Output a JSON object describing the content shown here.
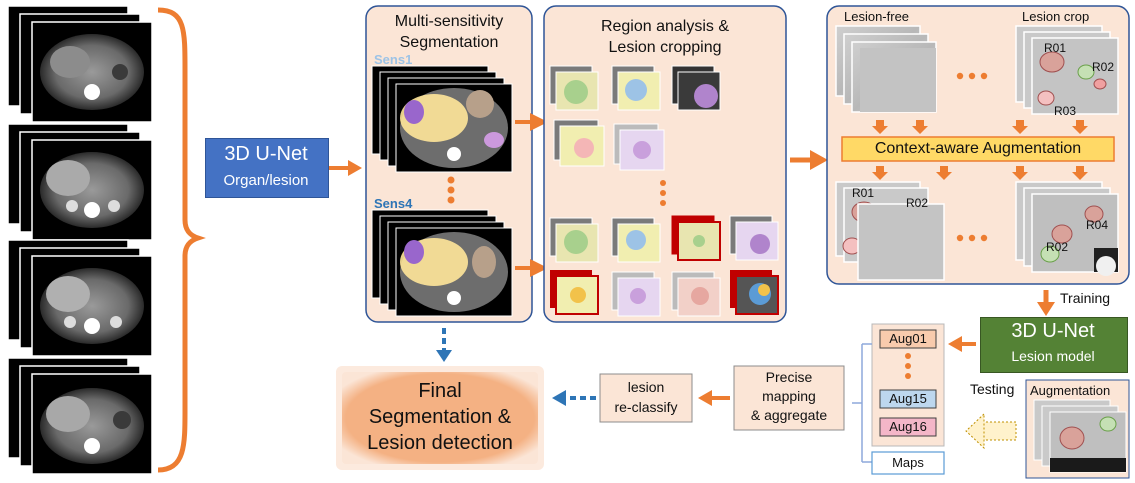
{
  "unet_main": {
    "title": "3D U-Net",
    "subtitle": "Organ/lesion"
  },
  "multi_sensitivity": {
    "title_line1": "Multi-sensitivity",
    "title_line2": "Segmentation",
    "sens_top": "Sens1",
    "sens_bottom": "Sens4"
  },
  "region_analysis": {
    "title_line1": "Region analysis &",
    "title_line2": "Lesion cropping"
  },
  "right_panel": {
    "lesion_free": "Lesion-free",
    "lesion_crop": "Lesion crop",
    "augmentation_bar": "Context-aware Augmentation",
    "roi_labels": [
      "R01",
      "R02",
      "R03"
    ],
    "roi_labels_bottom": [
      "R01",
      "R02",
      "R02",
      "R04"
    ]
  },
  "training_label": "Training",
  "lesion_model": {
    "title": "3D U-Net",
    "subtitle": "Lesion model"
  },
  "testing_label": "Testing",
  "augmentation_stack_label": "Augmentation",
  "aug_list": {
    "items": [
      "Aug01",
      "Aug15",
      "Aug16"
    ],
    "maps": "Maps"
  },
  "precise_mapping": {
    "line1": "Precise",
    "line2": "mapping",
    "line3": "& aggregate"
  },
  "reclassify": {
    "line1": "lesion",
    "line2": "re-classify"
  },
  "final": {
    "line1": "Final",
    "line2": "Segmentation &",
    "line3": "Lesion detection"
  },
  "colors": {
    "orange": "#ED7D31",
    "blue_box": "#4472C4",
    "green_box": "#548235",
    "panel_fill": "#FBE5D6",
    "panel_border": "#2F5597",
    "yellow": "#FFE699",
    "dotted_blue": "#2E75B6"
  }
}
